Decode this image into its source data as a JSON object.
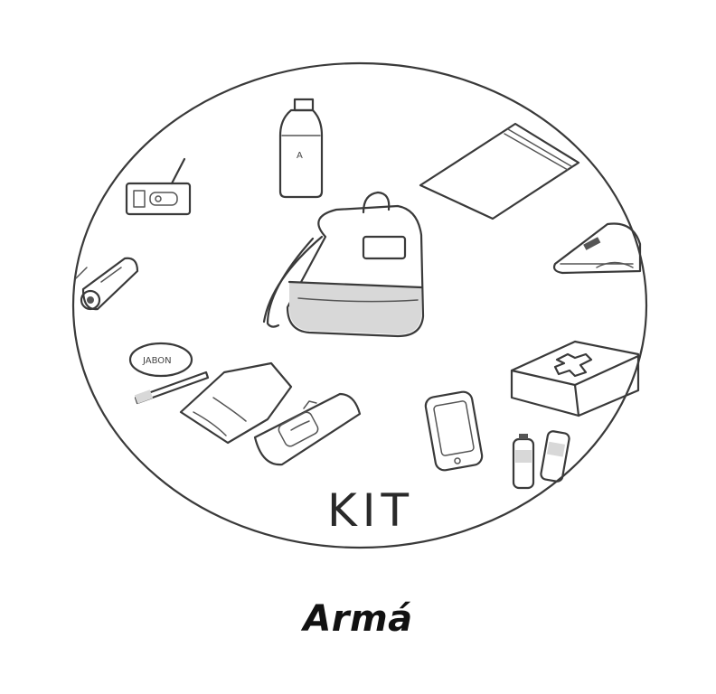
{
  "illustration": {
    "kit_label": "KIT",
    "bottle_label": "A",
    "soap_label": "JABON",
    "stroke_color": "#3a3a3a",
    "background_color": "#ffffff",
    "items": [
      "radio-icon",
      "water-bottle-icon",
      "zip-bag-icon",
      "backpack-icon",
      "flashlight-icon",
      "notebook-icon",
      "soap-icon",
      "toothbrush-icon",
      "towel-icon",
      "wet-wipes-icon",
      "phone-icon",
      "first-aid-kit-icon",
      "batteries-icon"
    ]
  },
  "caption": {
    "text": "Armá"
  }
}
